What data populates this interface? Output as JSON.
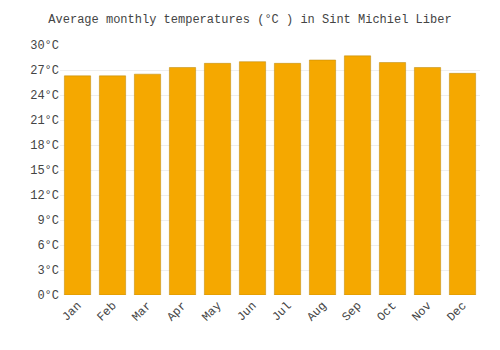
{
  "chart_data": {
    "type": "bar",
    "title": "Average monthly temperatures (°C ) in Sint Michiel Liber",
    "categories": [
      "Jan",
      "Feb",
      "Mar",
      "Apr",
      "May",
      "Jun",
      "Jul",
      "Aug",
      "Sep",
      "Oct",
      "Nov",
      "Dec"
    ],
    "values": [
      26.3,
      26.3,
      26.5,
      27.3,
      27.8,
      28.0,
      27.8,
      28.2,
      28.7,
      27.9,
      27.3,
      26.6
    ],
    "color": "#F5A800",
    "ylim": [
      0,
      30
    ],
    "yticks": [
      {
        "value": 0,
        "label": "0°C"
      },
      {
        "value": 3,
        "label": "3°C"
      },
      {
        "value": 6,
        "label": "6°C"
      },
      {
        "value": 9,
        "label": "9°C"
      },
      {
        "value": 12,
        "label": "12°C"
      },
      {
        "value": 15,
        "label": "15°C"
      },
      {
        "value": 18,
        "label": "18°C"
      },
      {
        "value": 21,
        "label": "21°C"
      },
      {
        "value": 24,
        "label": "24°C"
      },
      {
        "value": 27,
        "label": "27°C"
      },
      {
        "value": 30,
        "label": "30°C"
      }
    ],
    "grid": true
  }
}
